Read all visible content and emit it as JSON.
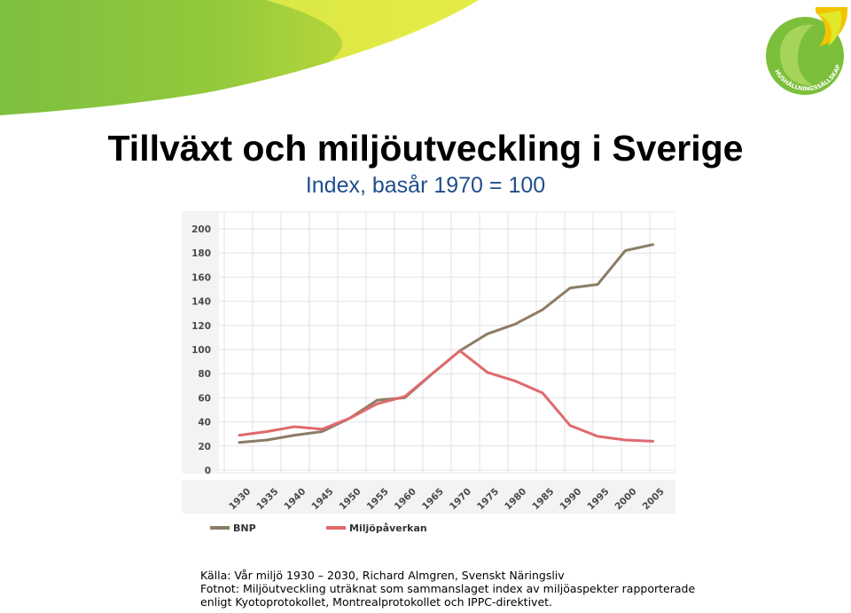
{
  "slide": {
    "title": "Tillväxt och miljöutveckling i Sverige",
    "subtitle": "Index, basår 1970 = 100",
    "source_line": "Källa: Vår miljö 1930 – 2030, Richard Almgren, Svenskt Näringsliv",
    "footnote_line1": "Fotnot: Miljöutveckling uträknat som sammanslaget index av miljöaspekter rapporterade",
    "footnote_line2": "enligt Kyotoprotokollet, Montrealprotokollet och IPPC-direktivet.",
    "logo_text": "HUSHÅLLNINGSSÄLLSKAPET"
  },
  "colors": {
    "banner_green": "#86c440",
    "banner_yellow": "#e6ea2e",
    "bnp": "#8c7c66",
    "miljo": "#df6a6d",
    "grid": "#e2e2e2"
  },
  "chart_data": {
    "type": "line",
    "x": [
      1930,
      1935,
      1940,
      1945,
      1950,
      1955,
      1960,
      1965,
      1970,
      1975,
      1980,
      1985,
      1990,
      1995,
      2000,
      2005
    ],
    "x_labels": [
      "1930",
      "1935",
      "1940",
      "1945",
      "1950",
      "1955",
      "1960",
      "1965",
      "1970",
      "1975",
      "1980",
      "1985",
      "1990",
      "1995",
      "2000",
      "2005"
    ],
    "y_ticks": [
      "0",
      "20",
      "40",
      "60",
      "80",
      "100",
      "120",
      "140",
      "160",
      "180",
      "200"
    ],
    "ylim": [
      0,
      200
    ],
    "grid": true,
    "legend_position": "bottom",
    "series": [
      {
        "name": "BNP",
        "color": "#8c7c66",
        "x": [
          1930,
          1935,
          1940,
          1945,
          1950,
          1955,
          1960,
          1965,
          1970,
          1975,
          1980,
          1985,
          1990,
          1995,
          2000,
          2005
        ],
        "values": [
          23,
          25,
          29,
          32,
          43,
          58,
          60,
          80,
          99,
          113,
          121,
          133,
          151,
          154,
          182,
          187
        ]
      },
      {
        "name": "Miljöpåverkan",
        "color": "#df6a6d",
        "x": [
          1930,
          1935,
          1940,
          1945,
          1950,
          1955,
          1960,
          1970,
          1975,
          1980,
          1985,
          1990,
          1995,
          2000,
          2005
        ],
        "values": [
          29,
          32,
          36,
          34,
          43,
          55,
          61,
          99,
          81,
          74,
          64,
          37,
          28,
          25,
          24
        ]
      }
    ]
  }
}
